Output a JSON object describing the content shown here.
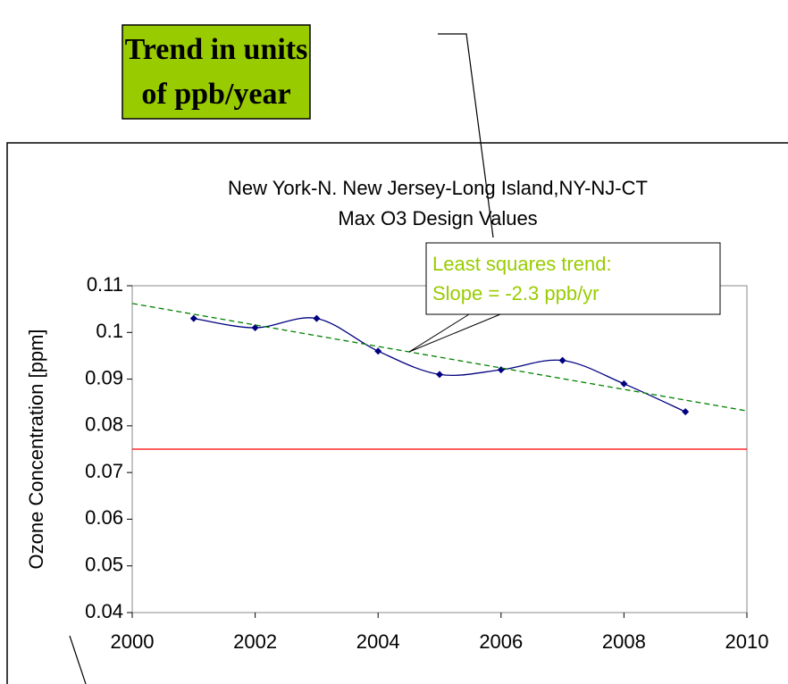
{
  "chart_data": {
    "type": "line",
    "title": [
      "New York-N. New Jersey-Long Island,NY-NJ-CT",
      "Max O3 Design Values"
    ],
    "y_label": "Ozone Concentration [ppm]",
    "callout": [
      "Trend in units",
      "of ppb/year"
    ],
    "annotation": [
      "Least squares trend:",
      "Slope = -2.3 ppb/yr"
    ],
    "x": [
      2001,
      2002,
      2003,
      2004,
      2005,
      2006,
      2007,
      2008,
      2009
    ],
    "series": [
      {
        "color": "#000080",
        "values": [
          0.103,
          0.101,
          0.103,
          0.096,
          0.091,
          0.092,
          0.094,
          0.089,
          0.083
        ]
      },
      {
        "color": "#008000",
        "x": [
          2000,
          2010
        ],
        "values": [
          0.1062,
          0.0832
        ],
        "dashed": true
      }
    ],
    "reference_value": 0.075,
    "reference_color": "#ff0000",
    "xlim": [
      2000,
      2010
    ],
    "xticks": [
      2000,
      2002,
      2004,
      2006,
      2008,
      2010
    ],
    "ylim": [
      0.04,
      0.11
    ],
    "yticks": [
      0.04,
      0.05,
      0.06,
      0.07,
      0.08,
      0.09,
      0.1,
      0.11
    ]
  }
}
